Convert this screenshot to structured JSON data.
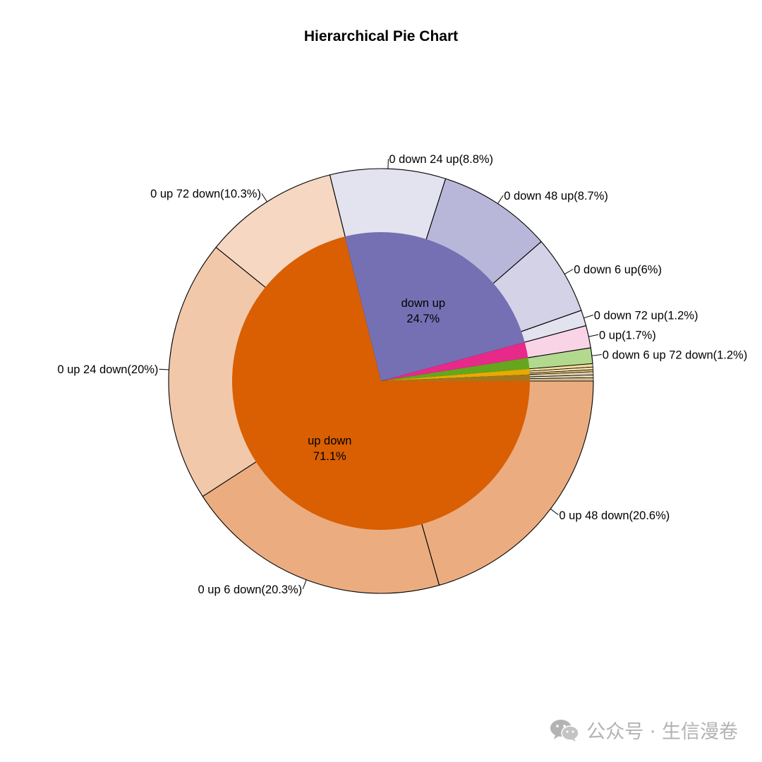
{
  "chart_data": {
    "type": "pie",
    "title": "Hierarchical Pie Chart",
    "inner": [
      {
        "label": "up down",
        "percent_label": "71.1%",
        "value": 71.1,
        "color": "#d95f02"
      },
      {
        "label": "down up",
        "percent_label": "24.7%",
        "value": 24.7,
        "color": "#7570b3"
      },
      {
        "label": "",
        "percent_label": "",
        "value": 1.7,
        "color": "#e7298a"
      },
      {
        "label": "",
        "percent_label": "",
        "value": 1.2,
        "color": "#66a61e"
      },
      {
        "label": "",
        "percent_label": "",
        "value": 0.6,
        "color": "#e6ab02"
      },
      {
        "label": "",
        "percent_label": "",
        "value": 0.7,
        "color": "#a6761d"
      }
    ],
    "outer": [
      {
        "label": "0 up 48 down(20.6%)",
        "value": 20.6,
        "color": "#ebad80",
        "parent": 0
      },
      {
        "label": "0 up 6 down(20.3%)",
        "value": 20.3,
        "color": "#ebad80",
        "parent": 0
      },
      {
        "label": "0 up 24 down(20%)",
        "value": 20.0,
        "color": "#f2c8aa",
        "parent": 0
      },
      {
        "label": "0 up 72 down(10.3%)",
        "value": 10.3,
        "color": "#f5d7c2",
        "parent": 0
      },
      {
        "label": "0 down 24 up(8.8%)",
        "value": 8.8,
        "color": "#e3e2ef",
        "parent": 1
      },
      {
        "label": "0 down 48 up(8.7%)",
        "value": 8.7,
        "color": "#b9b7d9",
        "parent": 1
      },
      {
        "label": "0 down 6 up(6%)",
        "value": 6.0,
        "color": "#d4d2e7",
        "parent": 1
      },
      {
        "label": "0 down 72 up(1.2%)",
        "value": 1.2,
        "color": "#e3e2ef",
        "parent": 1
      },
      {
        "label": "0 up(1.7%)",
        "value": 1.7,
        "color": "#f9d4e7",
        "parent": 2
      },
      {
        "label": "0 down 6 up 72 down(1.2%)",
        "value": 1.2,
        "color": "#b3d98f",
        "parent": 3
      },
      {
        "label": "",
        "value": 0.25,
        "color": "#f5dc99",
        "parent": 4
      },
      {
        "label": "",
        "value": 0.2,
        "color": "#fae6b3",
        "parent": 4
      },
      {
        "label": "",
        "value": 0.15,
        "color": "#f2d680",
        "parent": 4
      },
      {
        "label": "",
        "value": 0.25,
        "color": "#dcc8a5",
        "parent": 5
      },
      {
        "label": "",
        "value": 0.2,
        "color": "#e6d6b9",
        "parent": 5
      },
      {
        "label": "",
        "value": 0.25,
        "color": "#d2bb90",
        "parent": 5
      }
    ],
    "direction": "clockwise",
    "start_angle": "3 o'clock"
  },
  "watermark": {
    "text": "公众号 · 生信漫卷",
    "icon": "wechat-icon",
    "color": "#b3b3b3"
  }
}
